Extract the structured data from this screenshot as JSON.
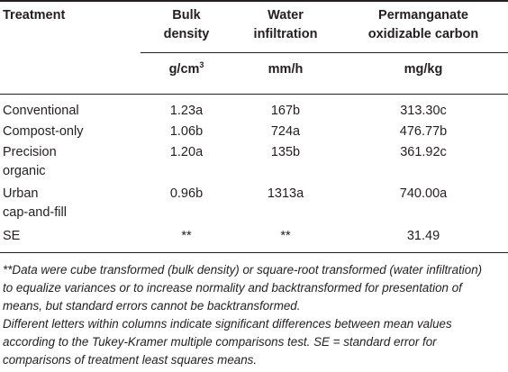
{
  "table": {
    "headers": {
      "treatment": "Treatment",
      "bulk_density_l1": "Bulk",
      "bulk_density_l2": "density",
      "water_inf_l1": "Water",
      "water_inf_l2": "infiltration",
      "pox_l1": "Permanganate",
      "pox_l2": "oxidizable carbon"
    },
    "units": {
      "bulk_density_base": "g/cm",
      "bulk_density_exp": "3",
      "water_infiltration": "mm/h",
      "pox": "mg/kg"
    },
    "rows": [
      {
        "treatment_l1": "Conventional",
        "treatment_l2": "",
        "bulk_density": "1.23a",
        "water_infiltration": "167b",
        "pox": "313.30c"
      },
      {
        "treatment_l1": "Compost-only",
        "treatment_l2": "",
        "bulk_density": "1.06b",
        "water_infiltration": "724a",
        "pox": "476.77b"
      },
      {
        "treatment_l1": "Precision",
        "treatment_l2": "organic",
        "bulk_density": "1.20a",
        "water_infiltration": "135b",
        "pox": "361.92c"
      },
      {
        "treatment_l1": "Urban",
        "treatment_l2": "cap-and-fill",
        "bulk_density": "0.96b",
        "water_infiltration": "1313a",
        "pox": "740.00a"
      },
      {
        "treatment_l1": "SE",
        "treatment_l2": "",
        "bulk_density": "**",
        "water_infiltration": "**",
        "pox": "31.49"
      }
    ]
  },
  "footnotes": {
    "line1": "**Data were cube transformed (bulk density) or square-root transformed (water infiltration)",
    "line2": "to equalize variances or to increase normality and backtransformed for presentation of",
    "line3": "means, but standard errors cannot be backtransformed.",
    "line4": "Different letters within columns indicate significant differences between mean values",
    "line5": "according to the Tukey-Kramer multiple comparisons test. SE = standard error for",
    "line6": "comparisons of treatment least squares means."
  }
}
